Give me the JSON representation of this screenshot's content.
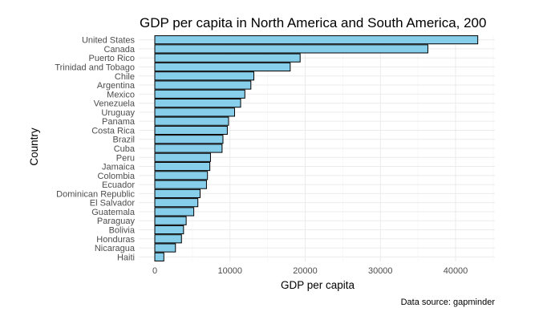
{
  "colors": {
    "bar_fill": "#87ceeb",
    "bar_outline": "#000000"
  },
  "chart_data": {
    "type": "bar",
    "orientation": "horizontal",
    "title": "GDP per capita in North America and South America, 200",
    "xlabel": "GDP per capita",
    "ylabel": "Country",
    "caption": "Data source: gapminder",
    "xlim": [
      0,
      46000
    ],
    "xticks": [
      0,
      10000,
      20000,
      30000,
      40000
    ],
    "categories": [
      "United States",
      "Canada",
      "Puerto Rico",
      "Trinidad and Tobago",
      "Chile",
      "Argentina",
      "Mexico",
      "Venezuela",
      "Uruguay",
      "Panama",
      "Costa Rica",
      "Brazil",
      "Cuba",
      "Peru",
      "Jamaica",
      "Colombia",
      "Ecuador",
      "Dominican Republic",
      "El Salvador",
      "Guatemala",
      "Paraguay",
      "Bolivia",
      "Honduras",
      "Nicaragua",
      "Haiti"
    ],
    "values": [
      42952,
      36319,
      19329,
      18009,
      13172,
      12779,
      11978,
      11416,
      10611,
      9809,
      9645,
      9066,
      8948,
      7409,
      7321,
      7007,
      6873,
      6025,
      5728,
      5186,
      4173,
      3822,
      3548,
      2749,
      1202
    ]
  }
}
